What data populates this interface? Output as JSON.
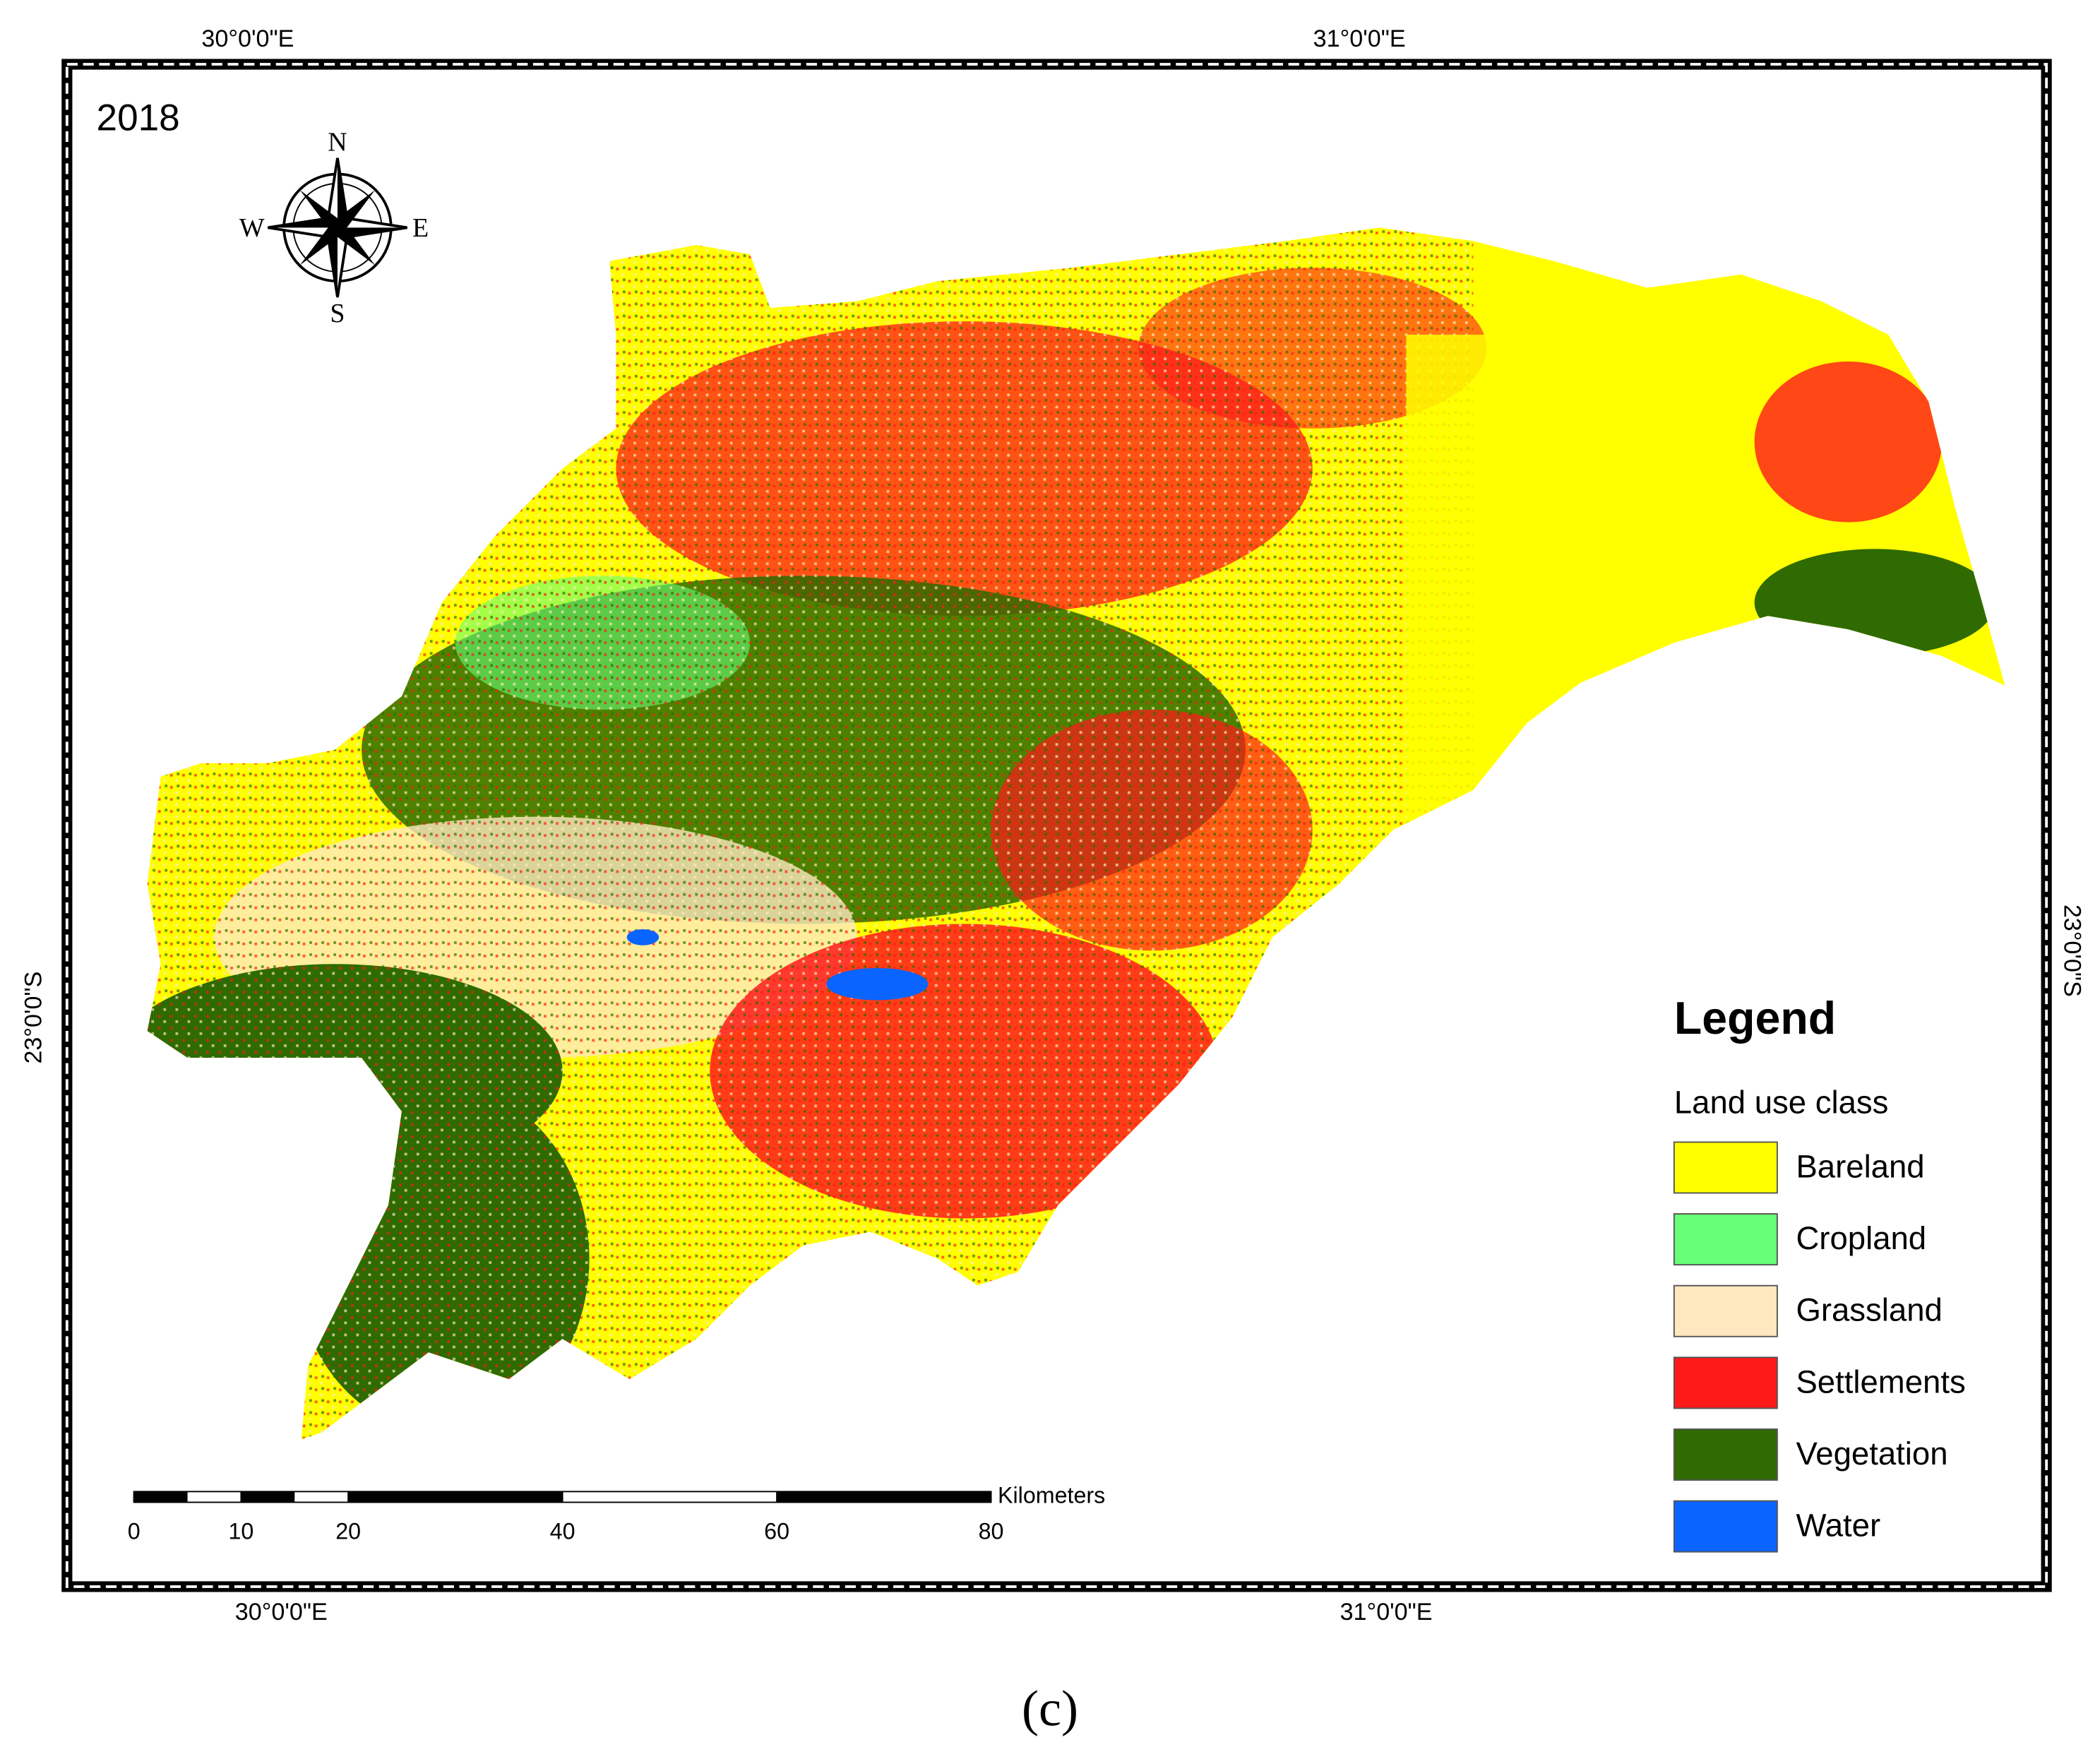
{
  "map": {
    "year": "2018",
    "graticule": {
      "top": [
        "30°0'0\"E",
        "31°0'0\"E"
      ],
      "bottom": [
        "30°0'0\"E",
        "31°0'0\"E"
      ],
      "left": "23°0'0\"S",
      "right": "23°0'0\"S"
    },
    "compass": {
      "north": "N",
      "east": "E",
      "south": "S",
      "west": "W"
    },
    "legend": {
      "title": "Legend",
      "subtitle": "Land use class",
      "classes": [
        {
          "label": "Bareland",
          "color": "#ffff00"
        },
        {
          "label": "Cropland",
          "color": "#66ff77"
        },
        {
          "label": "Grassland",
          "color": "#ffe8bf"
        },
        {
          "label": "Settlements",
          "color": "#ff1a1a"
        },
        {
          "label": "Vegetation",
          "color": "#2f6b00"
        },
        {
          "label": "Water",
          "color": "#0a64ff"
        }
      ]
    },
    "scale_bar": {
      "unit": "Kilometers",
      "ticks": [
        0,
        10,
        20,
        40,
        60,
        80
      ]
    }
  },
  "caption": "(c)"
}
